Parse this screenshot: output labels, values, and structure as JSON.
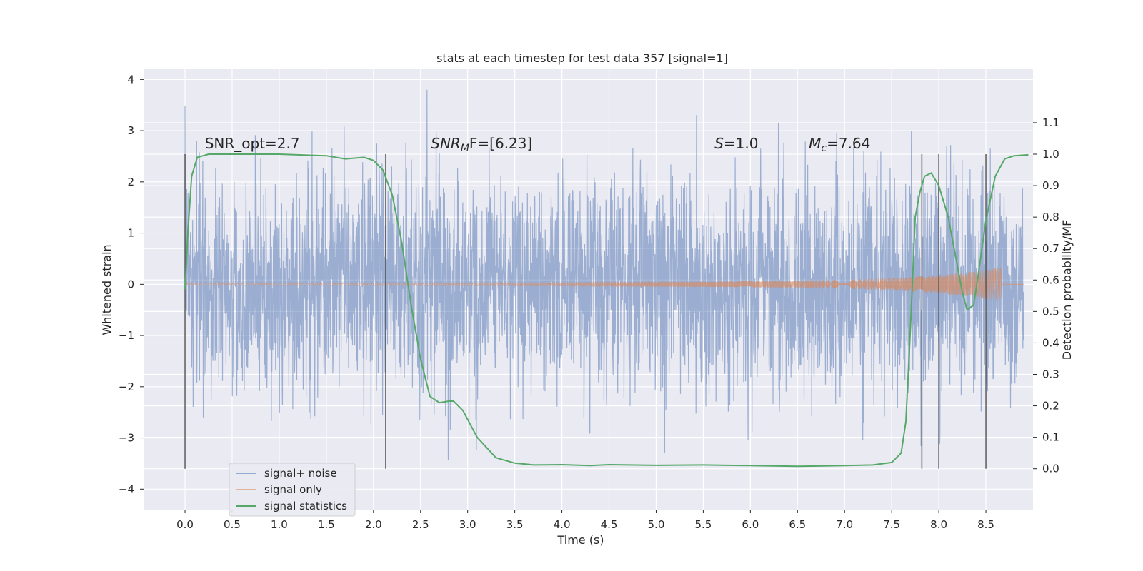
{
  "chart_data": {
    "type": "line",
    "title": "stats at each timestep for test data 357 [signal=1]",
    "xlabel": "Time (s)",
    "ylabel": "Whitened strain",
    "ylabel_right": "Detection probability/MF",
    "xlim": [
      -0.44,
      9.0
    ],
    "ylim": [
      -4.4,
      4.2
    ],
    "ylim_right": [
      -0.13,
      1.27
    ],
    "xticks": [
      "0.0",
      "0.5",
      "1.0",
      "1.5",
      "2.0",
      "2.5",
      "3.0",
      "3.5",
      "4.0",
      "4.5",
      "5.0",
      "5.5",
      "6.0",
      "6.5",
      "7.0",
      "7.5",
      "8.0",
      "8.5"
    ],
    "yticks": [
      "4",
      "3",
      "2",
      "1",
      "0",
      "−1",
      "−2",
      "−3",
      "−4"
    ],
    "yticks_right": [
      "1.1",
      "1.0",
      "0.9",
      "0.8",
      "0.7",
      "0.6",
      "0.5",
      "0.4",
      "0.3",
      "0.2",
      "0.1",
      "0.0"
    ],
    "grid": true,
    "legend_position": "lower-left",
    "series": [
      {
        "name": "signal+ noise",
        "color": "#4c72b0",
        "axis": "left",
        "note_range": [
          -3.8,
          3.8
        ],
        "x_range": [
          0.0,
          8.9
        ]
      },
      {
        "name": "signal only",
        "color": "#dd8452",
        "axis": "left",
        "x_range": [
          0.0,
          8.9
        ],
        "amplitude_points": [
          [
            0.0,
            0.02
          ],
          [
            4.0,
            0.03
          ],
          [
            6.0,
            0.06
          ],
          [
            7.0,
            0.09
          ],
          [
            7.5,
            0.12
          ],
          [
            8.0,
            0.18
          ],
          [
            8.4,
            0.25
          ],
          [
            8.6,
            0.32
          ],
          [
            8.67,
            0.34
          ]
        ]
      },
      {
        "name": "signal statistics",
        "color": "#55a868",
        "axis": "right",
        "points": [
          [
            0.0,
            0.57
          ],
          [
            0.03,
            0.75
          ],
          [
            0.07,
            0.93
          ],
          [
            0.13,
            0.99
          ],
          [
            0.25,
            1.0
          ],
          [
            0.5,
            1.0
          ],
          [
            1.0,
            1.0
          ],
          [
            1.5,
            0.995
          ],
          [
            1.7,
            0.985
          ],
          [
            1.9,
            0.99
          ],
          [
            2.0,
            0.98
          ],
          [
            2.1,
            0.95
          ],
          [
            2.2,
            0.87
          ],
          [
            2.3,
            0.72
          ],
          [
            2.4,
            0.52
          ],
          [
            2.5,
            0.35
          ],
          [
            2.6,
            0.23
          ],
          [
            2.7,
            0.21
          ],
          [
            2.8,
            0.215
          ],
          [
            2.85,
            0.215
          ],
          [
            2.95,
            0.185
          ],
          [
            3.1,
            0.1
          ],
          [
            3.3,
            0.035
          ],
          [
            3.5,
            0.018
          ],
          [
            3.7,
            0.012
          ],
          [
            4.0,
            0.013
          ],
          [
            4.3,
            0.01
          ],
          [
            4.5,
            0.013
          ],
          [
            5.0,
            0.011
          ],
          [
            5.5,
            0.012
          ],
          [
            6.0,
            0.01
          ],
          [
            6.5,
            0.008
          ],
          [
            7.0,
            0.01
          ],
          [
            7.3,
            0.012
          ],
          [
            7.5,
            0.02
          ],
          [
            7.6,
            0.05
          ],
          [
            7.65,
            0.15
          ],
          [
            7.7,
            0.45
          ],
          [
            7.75,
            0.8
          ],
          [
            7.8,
            0.88
          ],
          [
            7.85,
            0.93
          ],
          [
            7.92,
            0.94
          ],
          [
            8.0,
            0.9
          ],
          [
            8.1,
            0.8
          ],
          [
            8.2,
            0.64
          ],
          [
            8.25,
            0.56
          ],
          [
            8.3,
            0.505
          ],
          [
            8.37,
            0.52
          ],
          [
            8.42,
            0.62
          ],
          [
            8.5,
            0.79
          ],
          [
            8.6,
            0.93
          ],
          [
            8.7,
            0.985
          ],
          [
            8.8,
            0.995
          ],
          [
            8.95,
            0.998
          ]
        ]
      }
    ],
    "vlines": [
      0.0,
      2.13,
      7.82,
      8.0,
      8.5
    ],
    "annotations": [
      {
        "x": 0.21,
        "text": "SNR_opt=2.7"
      },
      {
        "x": 2.61,
        "text_main": "SNR",
        "text_sub": "M",
        "text_rest": "F=[6.23]"
      },
      {
        "x": 5.62,
        "text_main": "S",
        "text_rest": "=1.0"
      },
      {
        "x": 6.62,
        "text_main": "M",
        "text_sub": "c",
        "text_rest": "=7.64"
      }
    ]
  },
  "legend": [
    {
      "label": "signal+ noise",
      "color": "#4c72b0"
    },
    {
      "label": "signal only",
      "color": "#dd8452"
    },
    {
      "label": "signal statistics",
      "color": "#55a868"
    }
  ]
}
